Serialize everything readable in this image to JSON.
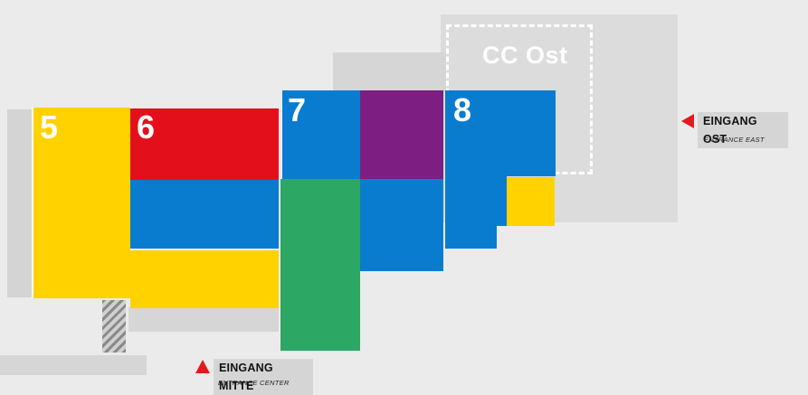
{
  "halls": {
    "h5": {
      "label": "5"
    },
    "h6": {
      "label": "6"
    },
    "h7": {
      "label": "7"
    },
    "h8": {
      "label": "8"
    },
    "cc_ost": {
      "label": "CC Ost"
    }
  },
  "entrances": {
    "east": {
      "label": "EINGANG OST",
      "sublabel": "ENTRANCE EAST"
    },
    "center": {
      "label": "EINGANG MITTE",
      "sublabel": "ENTRANCE CENTER"
    }
  },
  "colors": {
    "yellow": "#ffd200",
    "red": "#e3101b",
    "blue": "#0a7ccf",
    "purple": "#7d1f82",
    "green": "#2ca864",
    "gray_light": "#dcdcdc",
    "gray_mid": "#d2d2d2",
    "entrance_marker": "#e11b22",
    "background": "#ebebeb"
  }
}
